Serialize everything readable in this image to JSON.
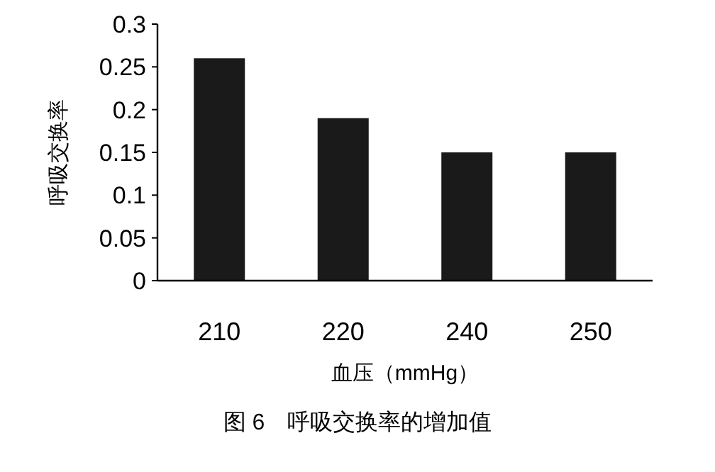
{
  "chart_data": {
    "type": "bar",
    "title": "图 6　呼吸交换率的增加值",
    "xlabel": "血压（mmHg）",
    "ylabel": "呼吸交换率",
    "categories": [
      "210",
      "220",
      "240",
      "250"
    ],
    "values": [
      0.26,
      0.19,
      0.15,
      0.15
    ],
    "color": "#1a1a1a",
    "ylim": [
      0,
      0.3
    ],
    "yticks": [
      0,
      0.05,
      0.1,
      0.15,
      0.2,
      0.25,
      0.3
    ],
    "grid": false
  }
}
